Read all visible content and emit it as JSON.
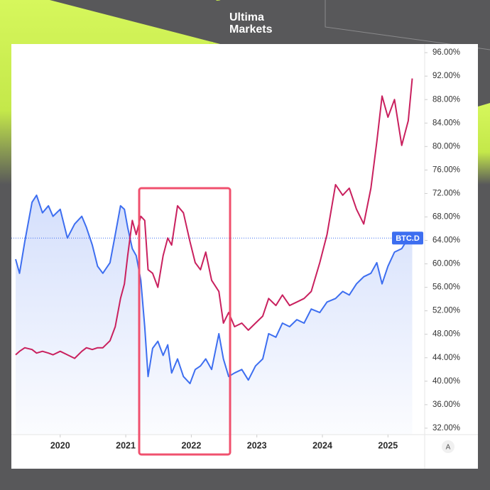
{
  "brand": {
    "line1": "Ultima",
    "line2": "Markets"
  },
  "chart_data": {
    "type": "line",
    "x": [
      2019.32,
      2019.38,
      2019.46,
      2019.57,
      2019.64,
      2019.73,
      2019.82,
      2019.89,
      2020.0,
      2020.11,
      2020.22,
      2020.33,
      2020.4,
      2020.49,
      2020.57,
      2020.65,
      2020.76,
      2020.84,
      2020.92,
      2020.98,
      2021.03,
      2021.1,
      2021.16,
      2021.23,
      2021.29,
      2021.34,
      2021.41,
      2021.49,
      2021.57,
      2021.64,
      2021.7,
      2021.79,
      2021.88,
      2021.98,
      2022.06,
      2022.14,
      2022.22,
      2022.31,
      2022.42,
      2022.49,
      2022.57,
      2022.66,
      2022.77,
      2022.87,
      2022.98,
      2023.09,
      2023.18,
      2023.29,
      2023.39,
      2023.5,
      2023.61,
      2023.72,
      2023.83,
      2023.96,
      2024.07,
      2024.2,
      2024.31,
      2024.41,
      2024.52,
      2024.63,
      2024.74,
      2024.83,
      2024.91,
      2025.0,
      2025.1,
      2025.21,
      2025.31,
      2025.37
    ],
    "series": [
      {
        "name": "BTC.D",
        "color": "#3d6ef0",
        "area": true,
        "values": [
          60.8,
          58.4,
          63.8,
          70.5,
          71.7,
          68.7,
          69.9,
          68.1,
          69.3,
          64.4,
          66.8,
          68.1,
          66.2,
          63.2,
          59.6,
          58.4,
          60.2,
          65.0,
          69.9,
          69.3,
          66.2,
          62.6,
          61.4,
          57.2,
          49.3,
          40.8,
          45.6,
          46.8,
          44.4,
          46.2,
          41.4,
          43.8,
          40.8,
          39.6,
          42.0,
          42.6,
          43.8,
          42.0,
          48.1,
          43.8,
          40.8,
          41.4,
          42.0,
          40.2,
          42.6,
          43.8,
          48.1,
          47.5,
          49.9,
          49.3,
          50.5,
          49.9,
          52.3,
          51.7,
          53.5,
          54.1,
          55.3,
          54.7,
          56.6,
          57.8,
          58.4,
          60.2,
          56.6,
          59.6,
          62.0,
          62.6,
          64.4,
          64.4
        ]
      },
      {
        "color": "#c9205e",
        "area": false,
        "values": [
          44.5,
          45.1,
          45.7,
          45.4,
          44.8,
          45.1,
          44.8,
          44.5,
          45.1,
          44.5,
          43.9,
          45.1,
          45.7,
          45.4,
          45.7,
          45.7,
          46.9,
          49.3,
          54.1,
          56.6,
          61.4,
          67.4,
          65.0,
          68.1,
          67.4,
          59.0,
          58.4,
          56.0,
          61.4,
          64.4,
          63.2,
          69.9,
          68.7,
          63.8,
          60.2,
          59.0,
          62.0,
          57.2,
          55.3,
          49.9,
          51.7,
          49.3,
          49.9,
          48.7,
          49.9,
          51.1,
          54.1,
          52.9,
          54.7,
          52.9,
          53.5,
          54.1,
          55.3,
          60.2,
          65.0,
          73.5,
          71.7,
          72.9,
          69.3,
          66.8,
          72.9,
          80.8,
          88.6,
          85.0,
          88.0,
          80.2,
          84.4,
          91.6
        ]
      }
    ],
    "xlim": [
      2019.32,
      2025.56
    ],
    "xticks": [
      2020,
      2021,
      2022,
      2023,
      2024,
      2025
    ],
    "ylim": [
      30.9,
      96.5
    ],
    "yticks": [
      {
        "value": 32,
        "label": "32.00%"
      },
      {
        "value": 36,
        "label": "36.00%"
      },
      {
        "value": 40,
        "label": "40.00%"
      },
      {
        "value": 44,
        "label": "44.00%"
      },
      {
        "value": 48,
        "label": "48.00%"
      },
      {
        "value": 52,
        "label": "52.00%"
      },
      {
        "value": 56,
        "label": "56.00%"
      },
      {
        "value": 60,
        "label": "60.00%"
      },
      {
        "value": 64,
        "label": "64.00%"
      },
      {
        "value": 68,
        "label": "68.00%"
      },
      {
        "value": 72,
        "label": "72.00%"
      },
      {
        "value": 76,
        "label": "76.00%"
      },
      {
        "value": 80,
        "label": "80.00%"
      },
      {
        "value": 84,
        "label": "84.00%"
      },
      {
        "value": 88,
        "label": "88.00%"
      },
      {
        "value": 92,
        "label": "92.00%"
      },
      {
        "value": 96,
        "label": "96.00%"
      }
    ],
    "grid": false,
    "scale_button": "A"
  }
}
